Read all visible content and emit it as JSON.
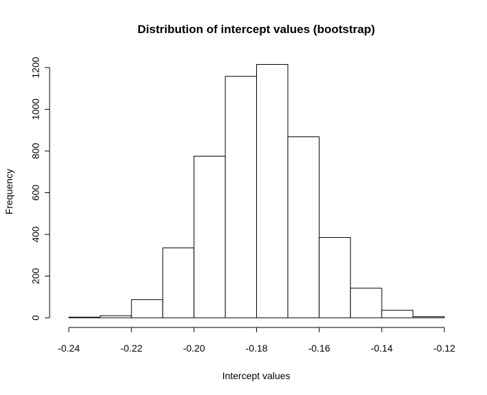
{
  "chart_data": {
    "type": "bar",
    "title": "Distribution of intercept values (bootstrap)",
    "xlabel": "Intercept values",
    "ylabel": "Frequency",
    "bins": [
      {
        "start": -0.24,
        "end": -0.23,
        "count": 3
      },
      {
        "start": -0.23,
        "end": -0.22,
        "count": 10
      },
      {
        "start": -0.22,
        "end": -0.21,
        "count": 87
      },
      {
        "start": -0.21,
        "end": -0.2,
        "count": 335
      },
      {
        "start": -0.2,
        "end": -0.19,
        "count": 775
      },
      {
        "start": -0.19,
        "end": -0.18,
        "count": 1158
      },
      {
        "start": -0.18,
        "end": -0.17,
        "count": 1215
      },
      {
        "start": -0.17,
        "end": -0.16,
        "count": 868
      },
      {
        "start": -0.16,
        "end": -0.15,
        "count": 385
      },
      {
        "start": -0.15,
        "end": -0.14,
        "count": 142
      },
      {
        "start": -0.14,
        "end": -0.13,
        "count": 36
      },
      {
        "start": -0.13,
        "end": -0.12,
        "count": 5
      }
    ],
    "xlim": [
      -0.24,
      -0.12
    ],
    "ylim": [
      0,
      1200
    ],
    "x_ticks": [
      -0.24,
      -0.22,
      -0.2,
      -0.18,
      -0.16,
      -0.14,
      -0.12
    ],
    "x_tick_labels": [
      "-0.24",
      "-0.22",
      "-0.20",
      "-0.18",
      "-0.16",
      "-0.14",
      "-0.12"
    ],
    "y_ticks": [
      0,
      200,
      400,
      600,
      800,
      1000,
      1200
    ],
    "y_tick_labels": [
      "0",
      "200",
      "400",
      "600",
      "800",
      "1000",
      "1200"
    ],
    "grid": false,
    "legend": "none"
  }
}
